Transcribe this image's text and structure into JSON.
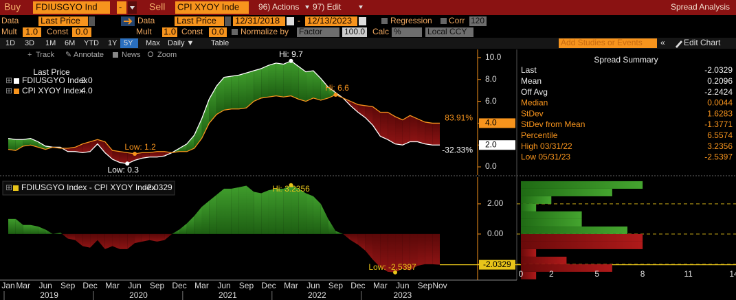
{
  "toolbar": {
    "buy": "Buy",
    "buy_ticker": "FDIUSGYO Ind",
    "operator": "-",
    "sell": "Sell",
    "sell_ticker": "CPI XYOY Inde",
    "actions": "96) Actions",
    "edit": "97) Edit",
    "screen_title": "Spread Analysis",
    "data1": "Data",
    "field1": "Last Price",
    "data2": "Data",
    "field2": "Last Price",
    "start_date": "12/31/2018",
    "date_sep": "-",
    "end_date": "12/13/2023",
    "regression": "Regression",
    "corr": "Corr",
    "corr_window": "120",
    "mult1": "Mult",
    "mult1_value": "1.0",
    "const1": "Const",
    "const1_value": "0.0",
    "mult2": "Mult",
    "mult2_value": "1.0",
    "const2": "Const",
    "const2_value": "0.0",
    "normalize": "Normalize by",
    "normalize_method": "Factor",
    "factor": "100.0",
    "calc": "Calc",
    "calc_method": "%",
    "currency": "Local CCY",
    "tabs": [
      "1D",
      "3D",
      "1M",
      "6M",
      "YTD",
      "1Y",
      "5Y",
      "Max",
      "Daily ▼",
      "Table"
    ],
    "add_studies": "Add Studies or Events",
    "edit_chart": "Edit Chart"
  },
  "tools": [
    "Track",
    "Annotate",
    "News",
    "Zoom"
  ],
  "summary": {
    "title": "Spread Summary",
    "rows": [
      {
        "label": "Last",
        "value": "-2.0329",
        "color": "#eeeeee"
      },
      {
        "label": "Mean",
        "value": "0.2096",
        "color": "#eeeeee"
      },
      {
        "label": "Off Avg",
        "value": "-2.2424",
        "color": "#eeeeee"
      },
      {
        "label": "Median",
        "value": "0.0044",
        "color": "#f7941d"
      },
      {
        "label": "StDev",
        "value": "1.6283",
        "color": "#f7941d"
      },
      {
        "label": "StDev from Mean",
        "value": "-1.3771",
        "color": "#f7941d"
      },
      {
        "label": "Percentile",
        "value": "6.5574",
        "color": "#f7941d"
      },
      {
        "label": "High 03/31/22",
        "value": "3.2356",
        "color": "#f7941d"
      },
      {
        "label": "Low 05/31/23",
        "value": "-2.5397",
        "color": "#f7941d"
      }
    ]
  },
  "chart_data": [
    {
      "type": "line",
      "legend_title": "Last Price",
      "ylim": [
        -0.75,
        10.75
      ],
      "yticks": [
        {
          "value": 0,
          "label": "0.0"
        },
        {
          "value": 2,
          "label": "2.0"
        },
        {
          "value": 4,
          "label": "4.0"
        },
        {
          "value": 6,
          "label": "6.0"
        },
        {
          "value": 8,
          "label": "8.0"
        },
        {
          "value": 10,
          "label": "10.0"
        }
      ],
      "colors": {
        "above": "url(#gGreen)",
        "below": "url(#gRed)"
      },
      "series": [
        {
          "name": "FDIUSGYO Index",
          "legend_value": "2.0",
          "change_label": "-32.33%",
          "high_label": "Hi: 9.7",
          "low_label": "Low: 0.3",
          "color": "#ffffff",
          "values": [
            2.6,
            2.5,
            2.5,
            2.6,
            2.3,
            1.9,
            1.8,
            1.8,
            1.4,
            1.4,
            1.3,
            1.4,
            2.1,
            1.3,
            0.7,
            0.4,
            0.3,
            0.6,
            0.8,
            0.9,
            0.9,
            1.0,
            1.3,
            1.7,
            2.1,
            2.9,
            4.4,
            6.2,
            7.4,
            8.2,
            8.3,
            8.4,
            8.6,
            8.8,
            9.0,
            9.3,
            9.5,
            9.4,
            9.7,
            9.2,
            8.7,
            8.8,
            8.1,
            7.3,
            6.8,
            6.3,
            5.6,
            5.0,
            4.5,
            3.8,
            2.8,
            2.5,
            2.1,
            2.0,
            2.3,
            2.3,
            2.1,
            2.0,
            2.0
          ]
        },
        {
          "name": "CPI XYOY Index",
          "legend_value": "4.0",
          "change_label": "83.91%",
          "high_label": "Hi: 6.6",
          "low_label": "Low: 1.2",
          "color": "#f7941d",
          "values": [
            1.6,
            1.5,
            1.9,
            2.0,
            1.8,
            1.6,
            1.8,
            1.7,
            1.7,
            1.8,
            2.1,
            2.3,
            2.5,
            2.3,
            1.5,
            1.4,
            1.3,
            1.2,
            1.3,
            1.3,
            1.4,
            1.4,
            1.3,
            1.4,
            1.4,
            1.7,
            2.6,
            4.0,
            4.8,
            5.2,
            5.3,
            5.3,
            5.4,
            6.0,
            6.3,
            6.4,
            6.5,
            6.4,
            6.5,
            6.2,
            6.0,
            6.3,
            6.1,
            6.3,
            6.6,
            6.3,
            6.0,
            5.7,
            5.6,
            5.5,
            5.0,
            5.0,
            4.6,
            4.3,
            4.7,
            4.4,
            4.1,
            4.0,
            4.0
          ]
        }
      ]
    },
    {
      "type": "area",
      "x": [
        "2019-01",
        "2019-02",
        "2019-03",
        "2019-04",
        "2019-05",
        "2019-06",
        "2019-07",
        "2019-08",
        "2019-09",
        "2019-10",
        "2019-11",
        "2019-12",
        "2020-01",
        "2020-02",
        "2020-03",
        "2020-04",
        "2020-05",
        "2020-06",
        "2020-07",
        "2020-08",
        "2020-09",
        "2020-10",
        "2020-11",
        "2020-12",
        "2021-01",
        "2021-02",
        "2021-03",
        "2021-04",
        "2021-05",
        "2021-06",
        "2021-07",
        "2021-08",
        "2021-09",
        "2021-10",
        "2021-11",
        "2021-12",
        "2022-01",
        "2022-02",
        "2022-03",
        "2022-04",
        "2022-05",
        "2022-06",
        "2022-07",
        "2022-08",
        "2022-09",
        "2022-10",
        "2022-11",
        "2022-12",
        "2023-01",
        "2023-02",
        "2023-03",
        "2023-04",
        "2023-05",
        "2023-06",
        "2023-07",
        "2023-08",
        "2023-09",
        "2023-10",
        "2023-11"
      ],
      "xticks": [
        {
          "value": "2019-01",
          "label": "Jan"
        },
        {
          "value": "2019-03",
          "label": "Mar"
        },
        {
          "value": "2019-06",
          "label": "Jun"
        },
        {
          "value": "2019-09",
          "label": "Sep"
        },
        {
          "value": "2019-12",
          "label": "Dec"
        },
        {
          "value": "2020-03",
          "label": "Mar"
        },
        {
          "value": "2020-06",
          "label": "Jun"
        },
        {
          "value": "2020-09",
          "label": "Sep"
        },
        {
          "value": "2020-12",
          "label": "Dec"
        },
        {
          "value": "2021-03",
          "label": "Mar"
        },
        {
          "value": "2021-06",
          "label": "Jun"
        },
        {
          "value": "2021-09",
          "label": "Sep"
        },
        {
          "value": "2021-12",
          "label": "Dec"
        },
        {
          "value": "2022-03",
          "label": "Mar"
        },
        {
          "value": "2022-06",
          "label": "Jun"
        },
        {
          "value": "2022-09",
          "label": "Sep"
        },
        {
          "value": "2022-12",
          "label": "Dec"
        },
        {
          "value": "2023-03",
          "label": "Mar"
        },
        {
          "value": "2023-06",
          "label": "Jun"
        },
        {
          "value": "2023-09",
          "label": "Sep"
        },
        {
          "value": "2023-11",
          "label": "Nov"
        }
      ],
      "years": [
        "2019",
        "2020",
        "2021",
        "2022",
        "2023"
      ],
      "ylim": [
        -3.05,
        3.77
      ],
      "yticks": [
        {
          "value": -2,
          "label": "-2.00"
        },
        {
          "value": 0,
          "label": "0.00"
        },
        {
          "value": 2,
          "label": "2.00"
        }
      ],
      "colors": {
        "above": "url(#gGreen)",
        "below": "url(#gRed)"
      },
      "series": [
        {
          "name": "FDIUSGYO Index - CPI XYOY Index",
          "legend_value": "-2.0329",
          "high_label": "Hi: 3.2356",
          "low_label": "Low: -2.5397",
          "color": "#e8c41a",
          "values": [
            1.0,
            1.0,
            0.6,
            0.6,
            0.5,
            0.3,
            0.0,
            0.1,
            -0.3,
            -0.4,
            -0.8,
            -0.9,
            -0.4,
            -1.0,
            -0.8,
            -1.0,
            -1.0,
            -0.6,
            -0.5,
            -0.4,
            -0.5,
            -0.4,
            0.0,
            0.3,
            0.7,
            1.2,
            1.8,
            2.2,
            2.6,
            3.0,
            3.0,
            3.1,
            3.2,
            2.8,
            2.7,
            2.9,
            3.0,
            3.0,
            3.2356,
            3.0,
            2.7,
            2.5,
            2.0,
            1.0,
            0.2,
            0.0,
            -0.4,
            -0.7,
            -1.1,
            -1.7,
            -2.2,
            -2.5,
            -2.5397,
            -2.3,
            -2.4,
            -2.1,
            -2.0,
            -2.0,
            -2.0329
          ]
        }
      ]
    },
    {
      "type": "histogram",
      "orientation": "horizontal",
      "bins": [
        -3,
        -2.5,
        -2,
        -1.5,
        -1,
        -0.5,
        0,
        0.5,
        1,
        1.5,
        2,
        2.5,
        3,
        3.5
      ],
      "counts": [
        1,
        6,
        3,
        1,
        8,
        8,
        7,
        4,
        4,
        1,
        2,
        6,
        8
      ],
      "xlim": [
        0,
        14
      ],
      "xticks": [
        0,
        2,
        5,
        8,
        11,
        14
      ],
      "colors": {
        "above": "url(#hGreen)",
        "below": "url(#hRed)"
      }
    }
  ]
}
